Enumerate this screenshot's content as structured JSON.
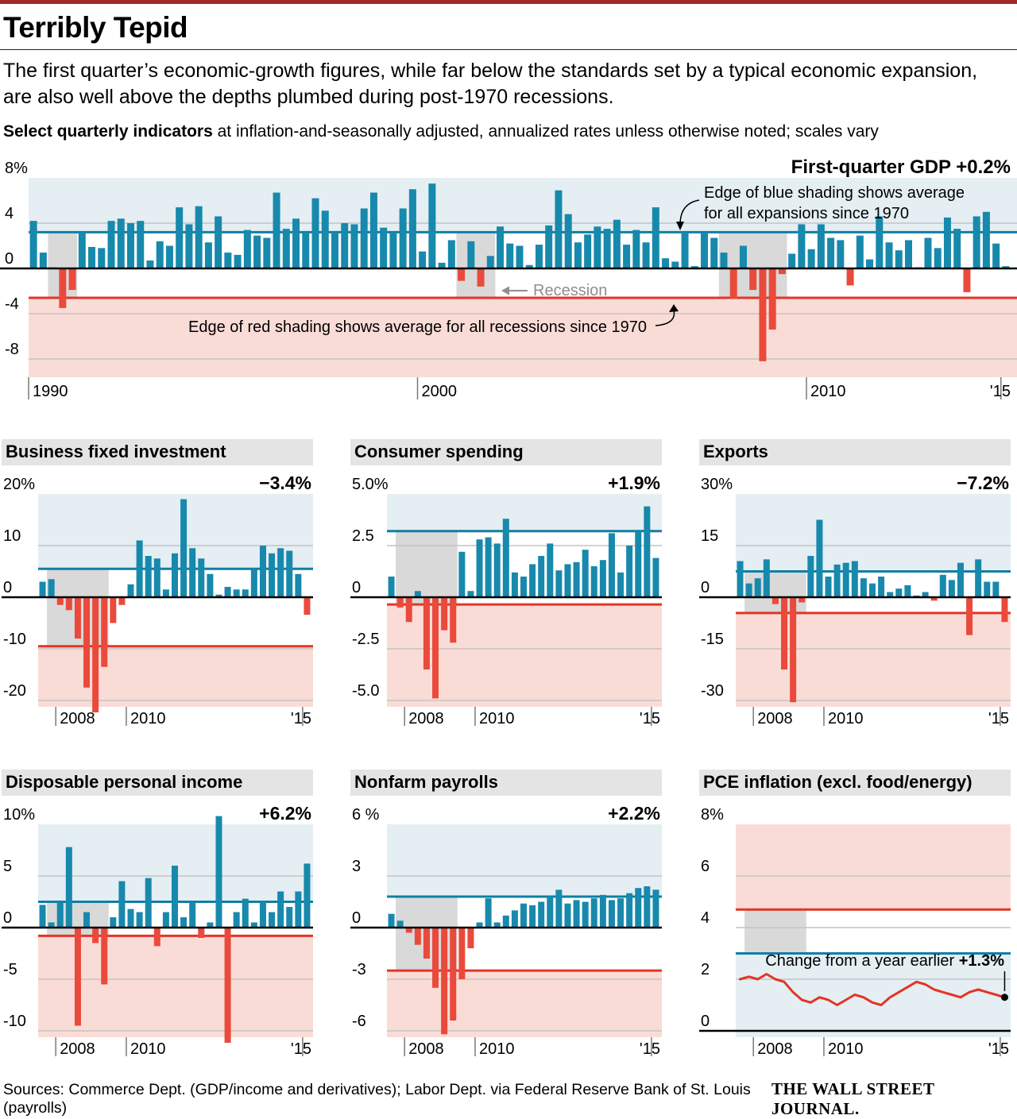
{
  "header": {
    "title": "Terribly Tepid",
    "dek": "The first quarter’s economic-growth figures, while far below the standards set by a typical economic expansion, are also well above the depths plumbed during post-1970 recessions.",
    "note_bold": "Select quarterly indicators",
    "note_rest": " at inflation-and-seasonally adjusted, annualized rates unless otherwise noted; scales vary"
  },
  "colors": {
    "bar_positive": "#1789ac",
    "bar_negative": "#ea4a3b",
    "blue_line": "#0f7fa4",
    "red_line": "#e43425",
    "blue_shade": "#e4eef3",
    "red_shade": "#fadcd7",
    "recession_gray": "#d9d9d9",
    "grid": "#c4c4c4",
    "zero": "#000000",
    "annotation_gray": "#8f8f8f",
    "title_strip": "#e4e4e4"
  },
  "chart_data": [
    {
      "id": "gdp",
      "kind": "main",
      "type": "bar",
      "title": "GDP",
      "value_label": "First-quarter GDP +0.2%",
      "y_ticks": [
        8,
        4,
        0,
        -4,
        -8
      ],
      "y_tick_labels": [
        "8%",
        "4",
        "0",
        "-4",
        "-8"
      ],
      "expansion_avg": 3.2,
      "recession_avg": -2.6,
      "shade": "normal",
      "x_ticks": [
        {
          "label": "1990",
          "index": 0
        },
        {
          "label": "2000",
          "index": 40
        },
        {
          "label": "2010",
          "index": 80
        },
        {
          "label": "'15",
          "index": 100,
          "align": "end"
        }
      ],
      "recessions": [
        [
          2,
          4
        ],
        [
          44,
          47
        ],
        [
          71,
          77
        ]
      ],
      "values": [
        4.2,
        1.4,
        0.1,
        -3.5,
        -1.9,
        3.2,
        1.9,
        1.8,
        4.2,
        4.4,
        4.0,
        4.2,
        0.7,
        2.4,
        2.0,
        5.4,
        3.9,
        5.5,
        2.3,
        4.6,
        1.4,
        1.2,
        3.4,
        2.9,
        2.7,
        6.7,
        3.5,
        4.4,
        3.1,
        6.2,
        5.1,
        3.1,
        4.0,
        3.9,
        5.3,
        6.7,
        3.6,
        3.2,
        5.3,
        7.0,
        1.5,
        7.5,
        0.5,
        2.5,
        -1.1,
        2.4,
        -1.6,
        1.1,
        3.7,
        2.2,
        2.0,
        0.3,
        2.1,
        3.8,
        6.9,
        4.8,
        2.3,
        3.0,
        3.7,
        3.5,
        4.3,
        2.1,
        3.4,
        2.3,
        5.4,
        0.9,
        0.6,
        3.2,
        0.2,
        3.1,
        2.7,
        1.4,
        -2.7,
        2.0,
        -1.9,
        -8.2,
        -5.4,
        -0.5,
        1.3,
        3.9,
        1.7,
        3.9,
        2.7,
        2.5,
        -1.5,
        2.9,
        0.8,
        4.6,
        2.3,
        1.6,
        2.5,
        0.1,
        2.7,
        1.8,
        4.5,
        3.5,
        -2.1,
        4.6,
        5.0,
        2.2,
        0.2
      ],
      "annotations": {
        "blue_note": [
          "Edge of blue shading shows average",
          "for all expansions since 1970"
        ],
        "recession_label": "Recession",
        "red_note": "Edge of red shading shows average for all recessions since 1970"
      }
    },
    {
      "id": "bfi",
      "kind": "small",
      "type": "bar",
      "title": "Business fixed investment",
      "value_label": "−3.4%",
      "y_ticks": [
        20,
        10,
        0,
        -10,
        -20
      ],
      "y_tick_labels": [
        "20%",
        "10",
        "0",
        "-10",
        "-20"
      ],
      "expansion_avg": 5.5,
      "recession_avg": -9.5,
      "shade": "normal",
      "x_ticks": [
        {
          "label": "2008",
          "index": 2
        },
        {
          "label": "2010",
          "index": 10
        },
        {
          "label": "'15",
          "index": 30,
          "align": "end"
        }
      ],
      "recessions": [
        [
          1,
          7
        ]
      ],
      "values": [
        3.0,
        3.5,
        -1.5,
        -2.5,
        -8.0,
        -17.5,
        -23.0,
        -13.5,
        -5.0,
        -1.5,
        2.5,
        11.0,
        8.0,
        7.5,
        1.5,
        8.5,
        19.0,
        9.5,
        7.5,
        4.5,
        0.5,
        2.0,
        1.5,
        1.5,
        5.5,
        10.0,
        8.5,
        9.5,
        9.0,
        4.5,
        -3.4
      ]
    },
    {
      "id": "consumer",
      "kind": "small",
      "type": "bar",
      "title": "Consumer spending",
      "value_label": "+1.9%",
      "y_ticks": [
        5,
        2.5,
        0,
        -2.5,
        -5
      ],
      "y_tick_labels": [
        "5.0%",
        "2.5",
        "0",
        "-2.5",
        "-5.0"
      ],
      "expansion_avg": 3.2,
      "recession_avg": -0.35,
      "shade": "normal",
      "x_ticks": [
        {
          "label": "2008",
          "index": 2
        },
        {
          "label": "2010",
          "index": 10
        },
        {
          "label": "'15",
          "index": 30,
          "align": "end"
        }
      ],
      "recessions": [
        [
          1,
          7
        ]
      ],
      "values": [
        1.0,
        -0.5,
        -1.2,
        0.3,
        -3.5,
        -4.9,
        -1.6,
        -2.2,
        2.2,
        0.3,
        2.8,
        2.9,
        2.6,
        3.8,
        1.2,
        1.0,
        1.6,
        2.0,
        2.6,
        1.3,
        1.6,
        1.7,
        2.3,
        1.5,
        1.8,
        3.1,
        1.2,
        2.5,
        3.2,
        4.4,
        1.9
      ]
    },
    {
      "id": "exports",
      "kind": "small",
      "type": "bar",
      "title": "Exports",
      "value_label": "−7.2%",
      "y_ticks": [
        30,
        15,
        0,
        -15,
        -30
      ],
      "y_tick_labels": [
        "30%",
        "15",
        "0",
        "-15",
        "-30"
      ],
      "expansion_avg": 7.5,
      "recession_avg": -4.6,
      "shade": "normal",
      "x_ticks": [
        {
          "label": "2008",
          "index": 2
        },
        {
          "label": "2010",
          "index": 10
        },
        {
          "label": "'15",
          "index": 30,
          "align": "end"
        }
      ],
      "recessions": [
        [
          1,
          7
        ]
      ],
      "values": [
        10.5,
        4.0,
        5.5,
        11.0,
        -2.0,
        -21.0,
        -30.5,
        -1.5,
        12.0,
        22.5,
        6.0,
        9.5,
        10.0,
        10.5,
        5.5,
        4.0,
        6.0,
        1.5,
        2.5,
        3.5,
        0.5,
        1.5,
        -1.0,
        6.5,
        5.0,
        10.0,
        -11.0,
        11.0,
        4.5,
        4.5,
        -7.2
      ]
    },
    {
      "id": "dpi",
      "kind": "small",
      "type": "bar",
      "title": "Disposable personal income",
      "value_label": "+6.2%",
      "y_ticks": [
        10,
        5,
        0,
        -5,
        -10
      ],
      "y_tick_labels": [
        "10%",
        "5",
        "0",
        "-5",
        "-10"
      ],
      "expansion_avg": 2.5,
      "recession_avg": -0.8,
      "shade": "normal",
      "x_ticks": [
        {
          "label": "2008",
          "index": 2
        },
        {
          "label": "2010",
          "index": 10
        },
        {
          "label": "'15",
          "index": 30,
          "align": "end"
        }
      ],
      "recessions": [
        [
          1,
          7
        ]
      ],
      "values": [
        2.2,
        0.5,
        2.5,
        7.8,
        -9.5,
        1.5,
        -1.5,
        -5.5,
        1.0,
        4.5,
        1.8,
        1.5,
        4.8,
        -1.8,
        1.5,
        6.0,
        1.0,
        2.5,
        -1.0,
        0.5,
        10.8,
        -11.5,
        1.5,
        2.8,
        0.5,
        2.5,
        1.5,
        3.5,
        2.0,
        3.5,
        6.2
      ]
    },
    {
      "id": "payrolls",
      "kind": "small",
      "type": "bar",
      "title": "Nonfarm payrolls",
      "value_label": "+2.2%",
      "y_ticks": [
        6,
        3,
        0,
        -3,
        -6
      ],
      "y_tick_labels": [
        "6 %",
        "3",
        "0",
        "-3",
        "-6"
      ],
      "expansion_avg": 1.8,
      "recession_avg": -2.5,
      "shade": "normal",
      "x_ticks": [
        {
          "label": "2008",
          "index": 2
        },
        {
          "label": "2010",
          "index": 10
        },
        {
          "label": "'15",
          "index": 30,
          "align": "end"
        }
      ],
      "recessions": [
        [
          1,
          7
        ]
      ],
      "values": [
        0.8,
        0.4,
        -0.3,
        -1.0,
        -1.8,
        -3.5,
        -6.2,
        -5.4,
        -3.0,
        -1.2,
        0.3,
        1.7,
        0.3,
        0.7,
        1.0,
        1.4,
        1.3,
        1.5,
        1.8,
        2.2,
        1.4,
        1.6,
        1.5,
        1.7,
        1.9,
        1.6,
        1.7,
        2.0,
        2.3,
        2.4,
        2.2
      ]
    },
    {
      "id": "pce",
      "kind": "small",
      "type": "line",
      "title": "PCE inflation (excl. food/energy)",
      "value_label": null,
      "y_ticks": [
        8,
        6,
        4,
        2,
        0
      ],
      "y_tick_labels": [
        "8%",
        "6",
        "4",
        "2",
        "0"
      ],
      "expansion_avg": 3.0,
      "recession_avg": 4.7,
      "shade": "inverted",
      "x_ticks": [
        {
          "label": "2008",
          "index": 2
        },
        {
          "label": "2010",
          "index": 10
        },
        {
          "label": "'15",
          "index": 30,
          "align": "end"
        }
      ],
      "recessions": [
        [
          1,
          7
        ]
      ],
      "values": [
        2.0,
        2.1,
        2.0,
        2.2,
        2.0,
        1.9,
        1.5,
        1.2,
        1.1,
        1.3,
        1.2,
        1.0,
        1.2,
        1.4,
        1.3,
        1.1,
        1.0,
        1.3,
        1.5,
        1.7,
        1.9,
        1.8,
        1.6,
        1.5,
        1.4,
        1.3,
        1.5,
        1.6,
        1.5,
        1.4,
        1.3
      ],
      "annotations": {
        "note_plain": "Change from a year earlier ",
        "note_bold": "+1.3%"
      }
    }
  ],
  "footer": {
    "sources": "Sources: Commerce Dept. (GDP/income and derivatives); Labor Dept. via Federal Reserve Bank of St. Louis (payrolls)",
    "brand": "THE WALL STREET JOURNAL."
  }
}
